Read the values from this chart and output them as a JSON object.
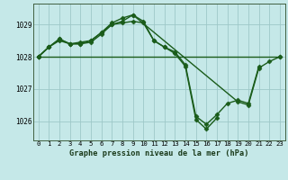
{
  "title": "Graphe pression niveau de la mer (hPa)",
  "bg_color": "#c5e8e8",
  "grid_color": "#9ec8c8",
  "line_color": "#1a5c1a",
  "series": [
    {
      "x": [
        0,
        1,
        2,
        3,
        4,
        5,
        6,
        7,
        8,
        9,
        10,
        11,
        12,
        13,
        14,
        15,
        16,
        17
      ],
      "y": [
        1028.0,
        1028.3,
        1028.5,
        1028.4,
        1028.4,
        1028.45,
        1028.7,
        1029.0,
        1029.05,
        1029.1,
        1029.05,
        1028.5,
        1028.3,
        1028.1,
        1027.7,
        1026.05,
        1025.75,
        1026.1
      ]
    },
    {
      "x": [
        0,
        1,
        2,
        3,
        4,
        5,
        6,
        7,
        8,
        9,
        10,
        11,
        12,
        13,
        14,
        15,
        16,
        17,
        18,
        19,
        20,
        21
      ],
      "y": [
        1028.0,
        1028.3,
        1028.55,
        1028.4,
        1028.4,
        1028.5,
        1028.75,
        1029.05,
        1029.2,
        1029.3,
        1029.1,
        1028.5,
        1028.3,
        1028.15,
        1027.75,
        1026.15,
        1025.9,
        1026.2,
        1026.55,
        1026.65,
        1026.55,
        1027.7
      ]
    },
    {
      "x": [
        0,
        1,
        2,
        3,
        4,
        5,
        6,
        7,
        8,
        9,
        19,
        20,
        21,
        22,
        23
      ],
      "y": [
        1028.0,
        1028.3,
        1028.55,
        1028.4,
        1028.45,
        1028.5,
        1028.75,
        1029.0,
        1029.1,
        1029.3,
        1026.6,
        1026.5,
        1027.65,
        1027.85,
        1028.0
      ]
    },
    {
      "x": [
        0,
        23
      ],
      "y": [
        1028.0,
        1028.0
      ]
    }
  ],
  "ylim": [
    1025.4,
    1029.65
  ],
  "yticks": [
    1026,
    1027,
    1028,
    1029
  ],
  "xticks": [
    0,
    1,
    2,
    3,
    4,
    5,
    6,
    7,
    8,
    9,
    10,
    11,
    12,
    13,
    14,
    15,
    16,
    17,
    18,
    19,
    20,
    21,
    22,
    23
  ],
  "marker": "D",
  "marker_size": 2.5,
  "line_width": 1.0,
  "tick_fontsize": 5.2,
  "label_fontsize": 6.2
}
